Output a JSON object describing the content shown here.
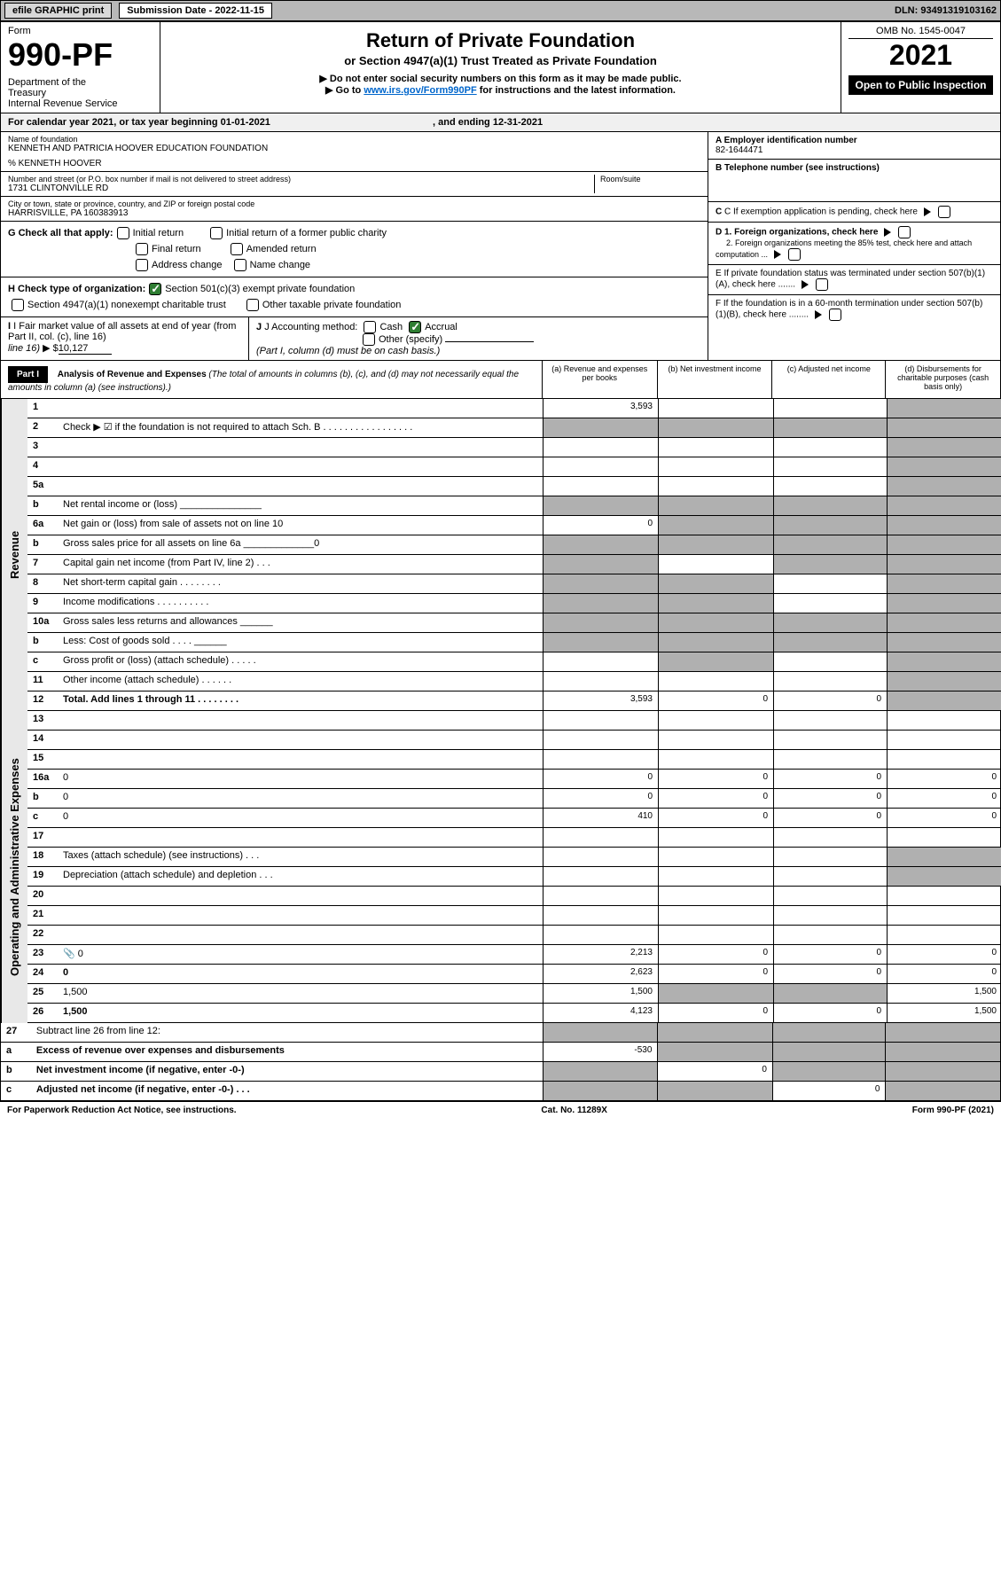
{
  "topbar": {
    "efile": "efile GRAPHIC print",
    "submission_label": "Submission Date - 2022-11-15",
    "dln": "DLN: 93491319103162"
  },
  "header": {
    "form_label": "Form",
    "form_num": "990-PF",
    "dept": "Department of the Treasury\nInternal Revenue Service",
    "title": "Return of Private Foundation",
    "subtitle": "or Section 4947(a)(1) Trust Treated as Private Foundation",
    "instr1": "▶ Do not enter social security numbers on this form as it may be made public.",
    "instr2_pre": "▶ Go to ",
    "instr2_link": "www.irs.gov/Form990PF",
    "instr2_post": " for instructions and the latest information.",
    "omb": "OMB No. 1545-0047",
    "year": "2021",
    "open": "Open to Public Inspection"
  },
  "calendar": {
    "text_pre": "For calendar year 2021, or tax year beginning ",
    "begin": "01-01-2021",
    "text_mid": " , and ending ",
    "end": "12-31-2021"
  },
  "foundation": {
    "name_label": "Name of foundation",
    "name": "KENNETH AND PATRICIA HOOVER EDUCATION FOUNDATION",
    "care_of": "% KENNETH HOOVER",
    "street_label": "Number and street (or P.O. box number if mail is not delivered to street address)",
    "street": "1731 CLINTONVILLE RD",
    "room_label": "Room/suite",
    "city_label": "City or town, state or province, country, and ZIP or foreign postal code",
    "city": "HARRISVILLE, PA  160383913",
    "ein_label": "A Employer identification number",
    "ein": "82-1644471",
    "phone_label": "B Telephone number (see instructions)",
    "pending_label": "C If exemption application is pending, check here",
    "d1": "D 1. Foreign organizations, check here",
    "d2": "2. Foreign organizations meeting the 85% test, check here and attach computation ...",
    "e": "E  If private foundation status was terminated under section 507(b)(1)(A), check here .......",
    "f": "F  If the foundation is in a 60-month termination under section 507(b)(1)(B), check here ........"
  },
  "checks": {
    "g_label": "G Check all that apply:",
    "initial": "Initial return",
    "initial_former": "Initial return of a former public charity",
    "final": "Final return",
    "amended": "Amended return",
    "address": "Address change",
    "name_change": "Name change",
    "h_label": "H Check type of organization:",
    "h1": "Section 501(c)(3) exempt private foundation",
    "h2": "Section 4947(a)(1) nonexempt charitable trust",
    "h3": "Other taxable private foundation",
    "i_label": "I Fair market value of all assets at end of year (from Part II, col. (c), line 16)",
    "i_prefix": "▶ $",
    "i_value": "10,127",
    "j_label": "J Accounting method:",
    "j_cash": "Cash",
    "j_accrual": "Accrual",
    "j_other": "Other (specify)",
    "j_note": "(Part I, column (d) must be on cash basis.)"
  },
  "part1": {
    "label": "Part I",
    "title": "Analysis of Revenue and Expenses",
    "note": "(The total of amounts in columns (b), (c), and (d) may not necessarily equal the amounts in column (a) (see instructions).)",
    "col_a": "(a)   Revenue and expenses per books",
    "col_b": "(b)   Net investment income",
    "col_c": "(c)   Adjusted net income",
    "col_d": "(d)   Disbursements for charitable purposes (cash basis only)"
  },
  "side_labels": {
    "revenue": "Revenue",
    "expenses": "Operating and Administrative Expenses"
  },
  "lines": [
    {
      "n": "1",
      "d": "",
      "a": "3,593",
      "b": "",
      "c": "",
      "shade": [
        "d"
      ]
    },
    {
      "n": "2",
      "d": "Check ▶ ☑ if the foundation is not required to attach Sch. B    .  .  .  .  .  .  .  .  .  .  .  .  .  .  .  .  .",
      "a": "",
      "shade": [
        "a",
        "b",
        "c",
        "d"
      ],
      "noborder": true
    },
    {
      "n": "3",
      "d": "",
      "a": "",
      "b": "",
      "c": "",
      "shade": [
        "d"
      ]
    },
    {
      "n": "4",
      "d": "",
      "a": "",
      "b": "",
      "c": "",
      "shade": [
        "d"
      ]
    },
    {
      "n": "5a",
      "d": "",
      "a": "",
      "b": "",
      "c": "",
      "shade": [
        "d"
      ]
    },
    {
      "n": "b",
      "d": "Net rental income or (loss)  _______________",
      "shade": [
        "a",
        "b",
        "c",
        "d"
      ]
    },
    {
      "n": "6a",
      "d": "Net gain or (loss) from sale of assets not on line 10",
      "a": "0",
      "shade": [
        "b",
        "c",
        "d"
      ]
    },
    {
      "n": "b",
      "d": "Gross sales price for all assets on line 6a _____________0",
      "shade": [
        "a",
        "b",
        "c",
        "d"
      ]
    },
    {
      "n": "7",
      "d": "Capital gain net income (from Part IV, line 2)    .    .    .",
      "shade": [
        "a",
        "c",
        "d"
      ],
      "b": ""
    },
    {
      "n": "8",
      "d": "Net short-term capital gain   .   .   .   .   .   .   .   .",
      "shade": [
        "a",
        "b",
        "d"
      ],
      "c": ""
    },
    {
      "n": "9",
      "d": "Income modifications  .   .   .   .   .   .   .   .   .   .",
      "shade": [
        "a",
        "b",
        "d"
      ],
      "c": ""
    },
    {
      "n": "10a",
      "d": "Gross sales less returns and allowances  ______",
      "shade": [
        "a",
        "b",
        "c",
        "d"
      ]
    },
    {
      "n": "b",
      "d": "Less: Cost of goods sold     .    .    .    .  ______",
      "shade": [
        "a",
        "b",
        "c",
        "d"
      ]
    },
    {
      "n": "c",
      "d": "Gross profit or (loss) (attach schedule)     .    .    .    .    .",
      "shade": [
        "b",
        "d"
      ],
      "a": "",
      "c": ""
    },
    {
      "n": "11",
      "d": "Other income (attach schedule)     .    .    .    .    .    .",
      "a": "",
      "b": "",
      "c": "",
      "shade": [
        "d"
      ]
    },
    {
      "n": "12",
      "d": "Total. Add lines 1 through 11   .   .   .   .   .   .   .   .",
      "a": "3,593",
      "b": "0",
      "c": "0",
      "shade": [
        "d"
      ],
      "bold": true
    }
  ],
  "exp_lines": [
    {
      "n": "13",
      "d": "",
      "a": "",
      "b": "",
      "c": ""
    },
    {
      "n": "14",
      "d": "",
      "a": "",
      "b": "",
      "c": ""
    },
    {
      "n": "15",
      "d": "",
      "a": "",
      "b": "",
      "c": ""
    },
    {
      "n": "16a",
      "d": "0",
      "a": "0",
      "b": "0",
      "c": "0"
    },
    {
      "n": "b",
      "d": "0",
      "a": "0",
      "b": "0",
      "c": "0"
    },
    {
      "n": "c",
      "d": "0",
      "a": "410",
      "b": "0",
      "c": "0"
    },
    {
      "n": "17",
      "d": "",
      "a": "",
      "b": "",
      "c": ""
    },
    {
      "n": "18",
      "d": "Taxes (attach schedule) (see instructions)     .    .    .",
      "a": "",
      "b": "",
      "c": "",
      "shade": [
        "d"
      ]
    },
    {
      "n": "19",
      "d": "Depreciation (attach schedule) and depletion    .    .    .",
      "a": "",
      "b": "",
      "c": "",
      "shade": [
        "d"
      ]
    },
    {
      "n": "20",
      "d": "",
      "a": "",
      "b": "",
      "c": ""
    },
    {
      "n": "21",
      "d": "",
      "a": "",
      "b": "",
      "c": ""
    },
    {
      "n": "22",
      "d": "",
      "a": "",
      "b": "",
      "c": ""
    },
    {
      "n": "23",
      "d": "0",
      "a": "2,213",
      "b": "0",
      "c": "0",
      "icon": true
    },
    {
      "n": "24",
      "d": "0",
      "a": "2,623",
      "b": "0",
      "c": "0",
      "bold": true
    },
    {
      "n": "25",
      "d": "1,500",
      "a": "1,500",
      "shade": [
        "b",
        "c"
      ]
    },
    {
      "n": "26",
      "d": "1,500",
      "a": "4,123",
      "b": "0",
      "c": "0",
      "bold": true
    }
  ],
  "bottom_lines": [
    {
      "n": "27",
      "d": "Subtract line 26 from line 12:",
      "shade": [
        "a",
        "b",
        "c",
        "d"
      ]
    },
    {
      "n": "a",
      "d": "Excess of revenue over expenses and disbursements",
      "a": "-530",
      "shade": [
        "b",
        "c",
        "d"
      ],
      "bold": true
    },
    {
      "n": "b",
      "d": "Net investment income (if negative, enter -0-)",
      "b": "0",
      "shade": [
        "a",
        "c",
        "d"
      ],
      "bold": true
    },
    {
      "n": "c",
      "d": "Adjusted net income (if negative, enter -0-)   .   .   .",
      "c": "0",
      "shade": [
        "a",
        "b",
        "d"
      ],
      "bold": true
    }
  ],
  "footer": {
    "left": "For Paperwork Reduction Act Notice, see instructions.",
    "mid": "Cat. No. 11289X",
    "right": "Form 990-PF (2021)"
  },
  "colors": {
    "shaded": "#b0b0b0",
    "link": "#0066cc",
    "check_green": "#2e7d32"
  }
}
